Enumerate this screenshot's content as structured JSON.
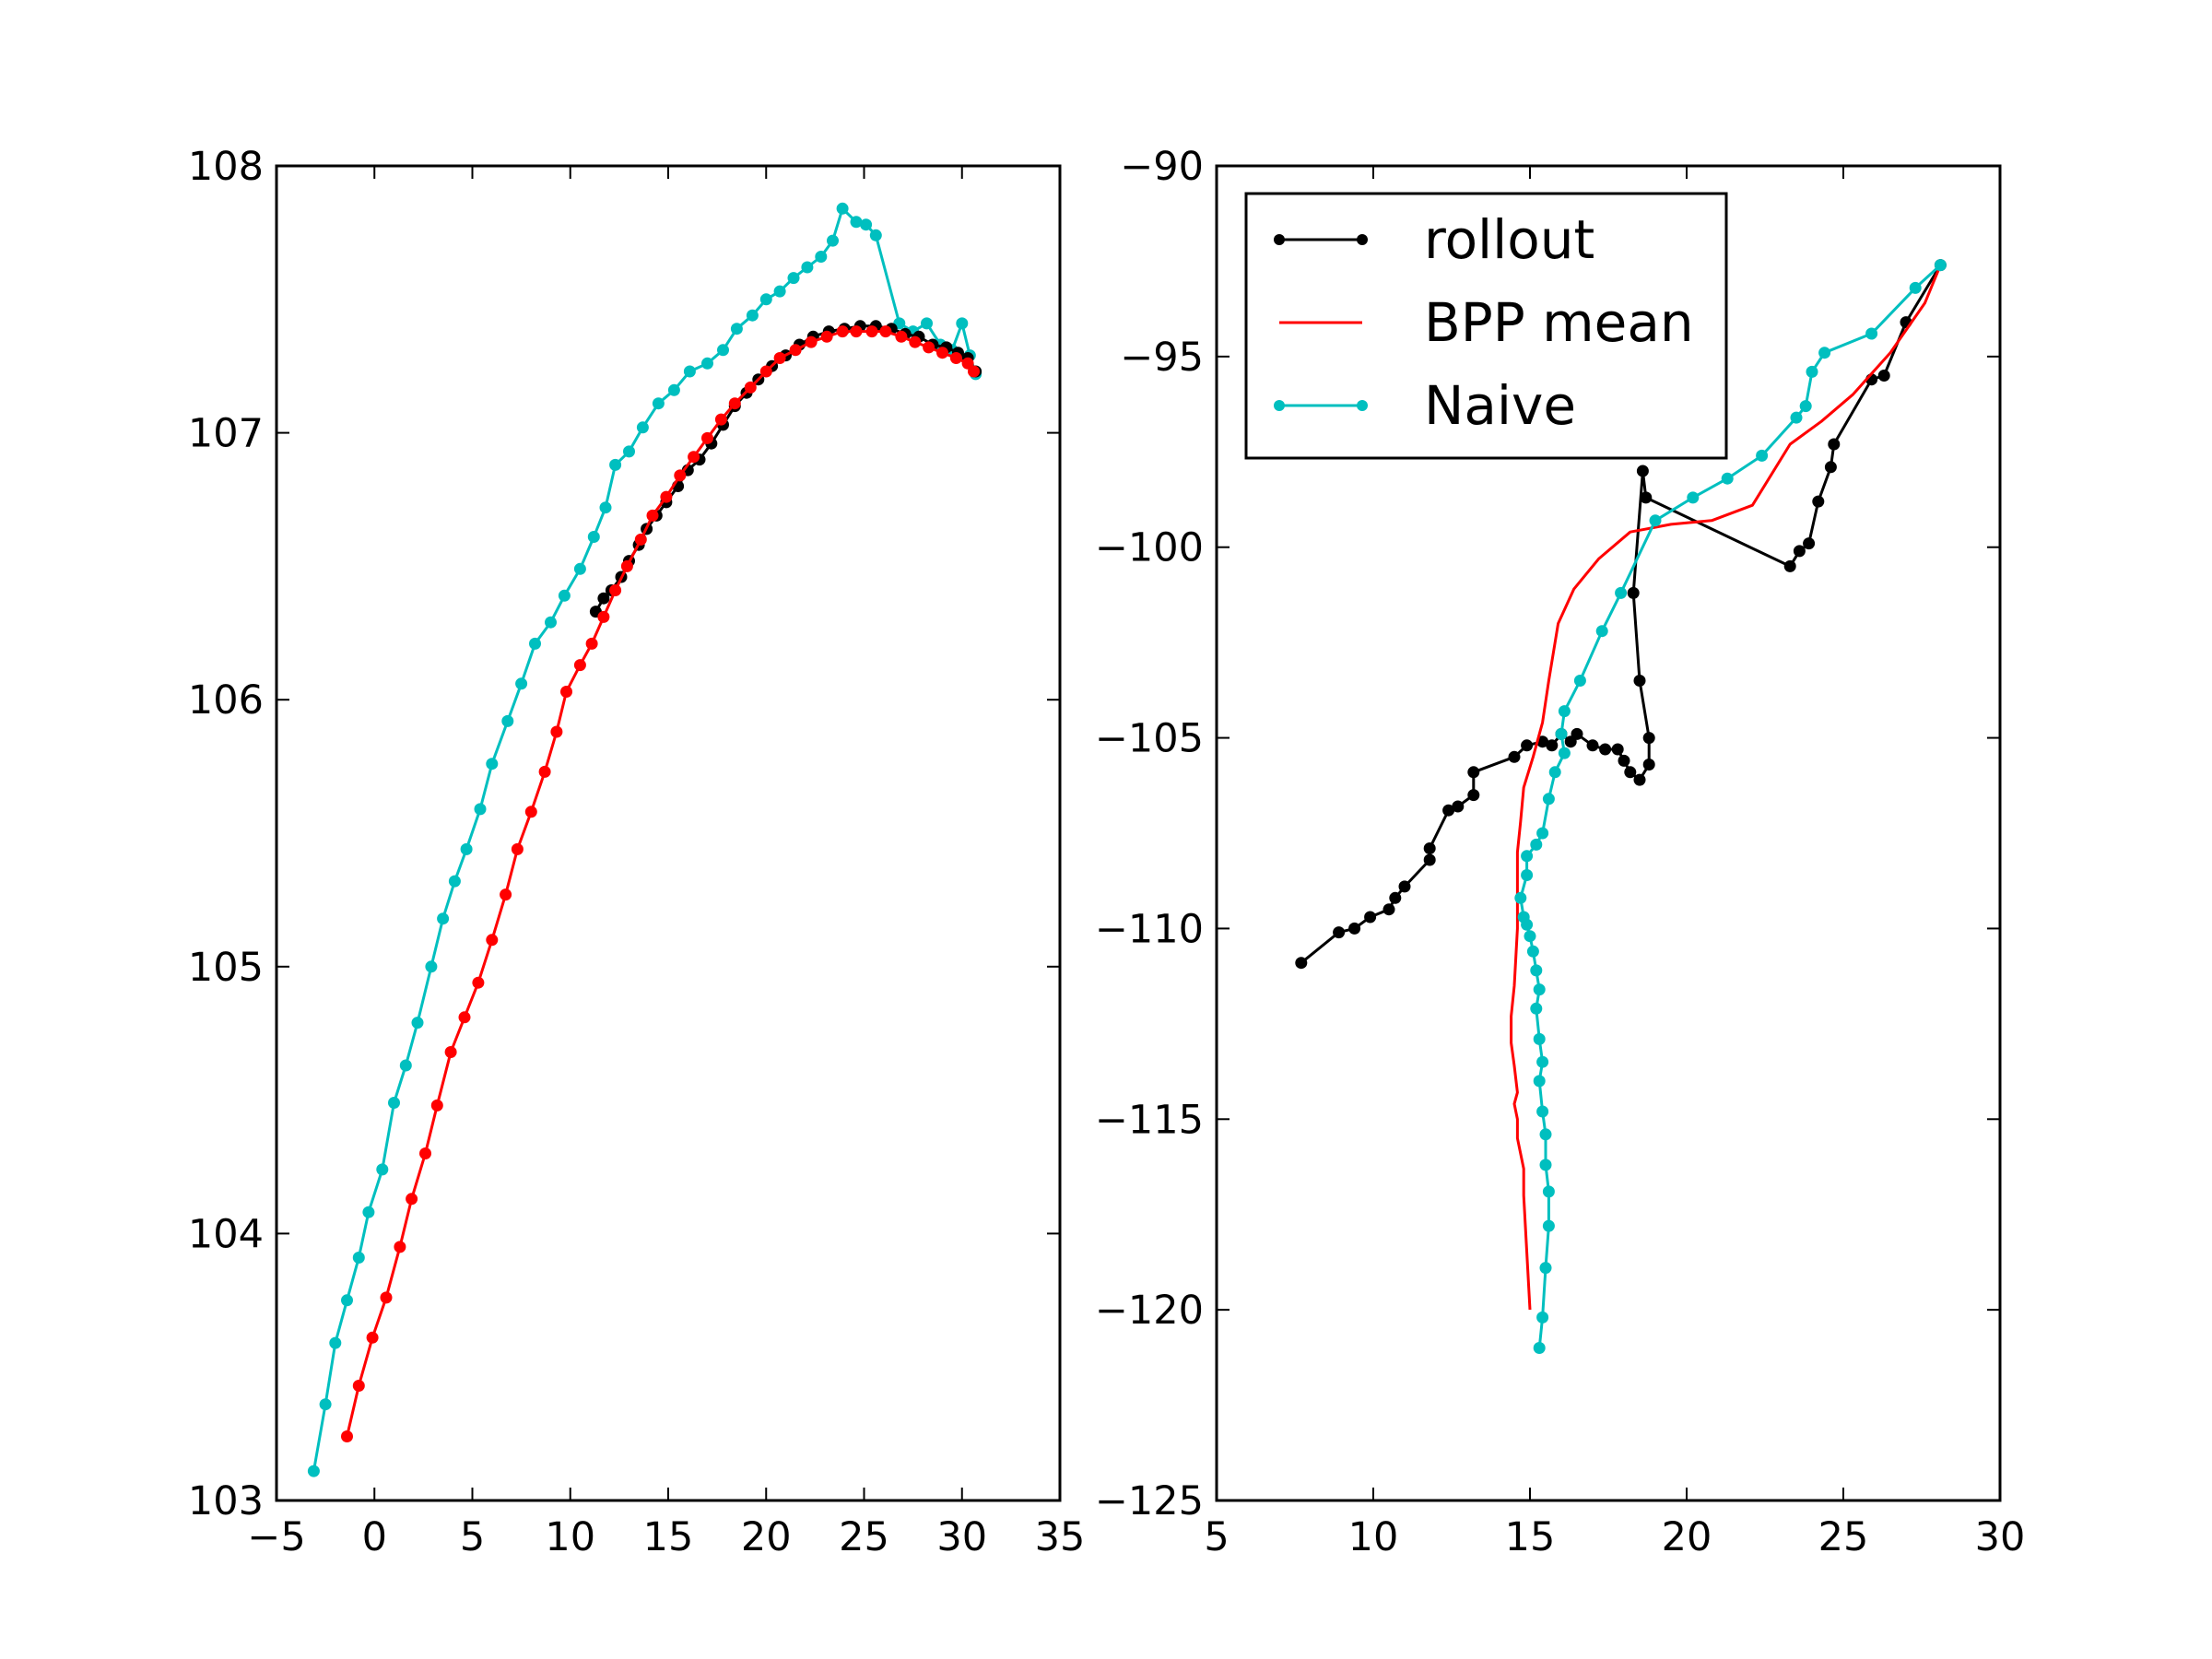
{
  "chart_data": [
    {
      "type": "line",
      "title": "",
      "xlabel": "",
      "ylabel": "",
      "xlim": [
        -5,
        35
      ],
      "ylim": [
        103,
        108
      ],
      "xticks": [
        -5,
        0,
        5,
        10,
        15,
        20,
        25,
        30,
        35
      ],
      "yticks": [
        103,
        104,
        105,
        106,
        107,
        108
      ],
      "grid": false,
      "series": [
        {
          "color": "#00bfbf",
          "marker": "circle",
          "points": [
            [
              -3.1,
              103.11
            ],
            [
              -2.5,
              103.36
            ],
            [
              -2.0,
              103.59
            ],
            [
              -1.4,
              103.75
            ],
            [
              -0.8,
              103.91
            ],
            [
              -0.3,
              104.08
            ],
            [
              0.4,
              104.24
            ],
            [
              1.0,
              104.49
            ],
            [
              1.6,
              104.63
            ],
            [
              2.2,
              104.79
            ],
            [
              2.9,
              105.0
            ],
            [
              3.5,
              105.18
            ],
            [
              4.1,
              105.32
            ],
            [
              4.7,
              105.44
            ],
            [
              5.4,
              105.59
            ],
            [
              6.0,
              105.76
            ],
            [
              6.8,
              105.92
            ],
            [
              7.5,
              106.06
            ],
            [
              8.2,
              106.21
            ],
            [
              9.0,
              106.29
            ],
            [
              9.7,
              106.39
            ],
            [
              10.5,
              106.49
            ],
            [
              11.2,
              106.61
            ],
            [
              11.8,
              106.72
            ],
            [
              12.3,
              106.88
            ],
            [
              13.0,
              106.93
            ],
            [
              13.7,
              107.02
            ],
            [
              14.5,
              107.11
            ],
            [
              15.3,
              107.16
            ],
            [
              16.1,
              107.23
            ],
            [
              17.0,
              107.26
            ],
            [
              17.8,
              107.31
            ],
            [
              18.5,
              107.39
            ],
            [
              19.3,
              107.44
            ],
            [
              20.0,
              107.5
            ],
            [
              20.7,
              107.53
            ],
            [
              21.4,
              107.58
            ],
            [
              22.1,
              107.62
            ],
            [
              22.8,
              107.66
            ],
            [
              23.4,
              107.72
            ],
            [
              23.9,
              107.84
            ],
            [
              24.6,
              107.79
            ],
            [
              25.1,
              107.78
            ],
            [
              25.6,
              107.74
            ],
            [
              26.8,
              107.41
            ],
            [
              27.5,
              107.38
            ],
            [
              28.2,
              107.41
            ],
            [
              28.9,
              107.33
            ],
            [
              29.5,
              107.31
            ],
            [
              30.0,
              107.41
            ],
            [
              30.4,
              107.29
            ],
            [
              30.7,
              107.22
            ]
          ]
        },
        {
          "color": "#000000",
          "marker": "circle",
          "points": [
            [
              11.3,
              106.33
            ],
            [
              11.7,
              106.38
            ],
            [
              12.1,
              106.41
            ],
            [
              12.6,
              106.46
            ],
            [
              13.0,
              106.52
            ],
            [
              13.5,
              106.58
            ],
            [
              13.9,
              106.64
            ],
            [
              14.4,
              106.69
            ],
            [
              14.9,
              106.74
            ],
            [
              15.5,
              106.8
            ],
            [
              16.0,
              106.86
            ],
            [
              16.6,
              106.9
            ],
            [
              17.2,
              106.96
            ],
            [
              17.8,
              107.03
            ],
            [
              18.4,
              107.1
            ],
            [
              19.0,
              107.15
            ],
            [
              19.6,
              107.2
            ],
            [
              20.3,
              107.25
            ],
            [
              21.0,
              107.29
            ],
            [
              21.7,
              107.33
            ],
            [
              22.4,
              107.36
            ],
            [
              23.2,
              107.38
            ],
            [
              24.0,
              107.39
            ],
            [
              24.8,
              107.4
            ],
            [
              25.6,
              107.4
            ],
            [
              26.4,
              107.39
            ],
            [
              27.1,
              107.37
            ],
            [
              27.8,
              107.36
            ],
            [
              28.5,
              107.33
            ],
            [
              29.2,
              107.32
            ],
            [
              29.8,
              107.3
            ],
            [
              30.3,
              107.28
            ],
            [
              30.7,
              107.23
            ]
          ]
        },
        {
          "color": "#ff0000",
          "marker": "circle",
          "points": [
            [
              -1.4,
              103.24
            ],
            [
              -0.8,
              103.43
            ],
            [
              -0.1,
              103.61
            ],
            [
              0.6,
              103.76
            ],
            [
              1.3,
              103.95
            ],
            [
              1.9,
              104.13
            ],
            [
              2.6,
              104.3
            ],
            [
              3.2,
              104.48
            ],
            [
              3.9,
              104.68
            ],
            [
              4.6,
              104.81
            ],
            [
              5.3,
              104.94
            ],
            [
              6.0,
              105.1
            ],
            [
              6.7,
              105.27
            ],
            [
              7.3,
              105.44
            ],
            [
              8.0,
              105.58
            ],
            [
              8.7,
              105.73
            ],
            [
              9.3,
              105.88
            ],
            [
              9.8,
              106.03
            ],
            [
              10.5,
              106.13
            ],
            [
              11.1,
              106.21
            ],
            [
              11.7,
              106.31
            ],
            [
              12.3,
              106.41
            ],
            [
              12.9,
              106.5
            ],
            [
              13.6,
              106.6
            ],
            [
              14.2,
              106.69
            ],
            [
              14.9,
              106.76
            ],
            [
              15.6,
              106.84
            ],
            [
              16.3,
              106.91
            ],
            [
              17.0,
              106.98
            ],
            [
              17.7,
              107.05
            ],
            [
              18.4,
              107.11
            ],
            [
              19.2,
              107.17
            ],
            [
              20.0,
              107.23
            ],
            [
              20.7,
              107.28
            ],
            [
              21.5,
              107.31
            ],
            [
              22.3,
              107.34
            ],
            [
              23.1,
              107.36
            ],
            [
              23.9,
              107.38
            ],
            [
              24.6,
              107.38
            ],
            [
              25.4,
              107.38
            ],
            [
              26.1,
              107.38
            ],
            [
              26.9,
              107.36
            ],
            [
              27.6,
              107.34
            ],
            [
              28.3,
              107.32
            ],
            [
              29.0,
              107.3
            ],
            [
              29.7,
              107.28
            ],
            [
              30.3,
              107.26
            ],
            [
              30.6,
              107.23
            ]
          ]
        }
      ]
    },
    {
      "type": "line",
      "title": "",
      "xlabel": "",
      "ylabel": "",
      "xlim": [
        5,
        30
      ],
      "ylim": [
        -125,
        -90
      ],
      "xticks": [
        5,
        10,
        15,
        20,
        25,
        30
      ],
      "yticks": [
        -125,
        -120,
        -115,
        -110,
        -105,
        -100,
        -95,
        -90
      ],
      "grid": false,
      "legend_position": "top-left",
      "series": [
        {
          "name": "rollout",
          "color": "#000000",
          "marker": "circle",
          "points": [
            [
              7.7,
              -110.9
            ],
            [
              8.9,
              -110.1
            ],
            [
              9.4,
              -110.0
            ],
            [
              9.9,
              -109.7
            ],
            [
              10.5,
              -109.5
            ],
            [
              10.7,
              -109.2
            ],
            [
              11.0,
              -108.9
            ],
            [
              11.8,
              -108.2
            ],
            [
              11.8,
              -107.9
            ],
            [
              12.4,
              -106.9
            ],
            [
              12.7,
              -106.8
            ],
            [
              13.2,
              -106.5
            ],
            [
              13.2,
              -105.9
            ],
            [
              14.5,
              -105.5
            ],
            [
              14.9,
              -105.2
            ],
            [
              15.4,
              -105.1
            ],
            [
              15.7,
              -105.2
            ],
            [
              16.0,
              -104.9
            ],
            [
              16.3,
              -105.1
            ],
            [
              16.5,
              -104.9
            ],
            [
              17.0,
              -105.2
            ],
            [
              17.4,
              -105.3
            ],
            [
              17.8,
              -105.3
            ],
            [
              18.0,
              -105.6
            ],
            [
              18.2,
              -105.9
            ],
            [
              18.5,
              -106.1
            ],
            [
              18.8,
              -105.7
            ],
            [
              18.8,
              -105.0
            ],
            [
              18.5,
              -103.5
            ],
            [
              18.3,
              -101.2
            ],
            [
              18.6,
              -98.0
            ],
            [
              18.7,
              -98.7
            ],
            [
              23.3,
              -100.5
            ],
            [
              23.6,
              -100.1
            ],
            [
              23.9,
              -99.9
            ],
            [
              24.2,
              -98.8
            ],
            [
              24.6,
              -97.9
            ],
            [
              24.7,
              -97.3
            ],
            [
              25.9,
              -95.6
            ],
            [
              26.3,
              -95.5
            ],
            [
              27.0,
              -94.1
            ],
            [
              28.1,
              -92.6
            ]
          ]
        },
        {
          "name": "BPP mean",
          "color": "#ff0000",
          "marker": "none",
          "points": [
            [
              15.0,
              -120.0
            ],
            [
              14.9,
              -118.5
            ],
            [
              14.8,
              -117.0
            ],
            [
              14.8,
              -116.3
            ],
            [
              14.6,
              -115.5
            ],
            [
              14.6,
              -115.0
            ],
            [
              14.5,
              -114.6
            ],
            [
              14.6,
              -114.3
            ],
            [
              14.5,
              -113.6
            ],
            [
              14.4,
              -113.0
            ],
            [
              14.4,
              -112.3
            ],
            [
              14.5,
              -111.5
            ],
            [
              14.6,
              -110.0
            ],
            [
              14.6,
              -109.0
            ],
            [
              14.6,
              -108.0
            ],
            [
              14.7,
              -107.2
            ],
            [
              14.8,
              -106.3
            ],
            [
              15.1,
              -105.5
            ],
            [
              15.4,
              -104.6
            ],
            [
              15.6,
              -103.5
            ],
            [
              15.9,
              -102.0
            ],
            [
              16.4,
              -101.1
            ],
            [
              17.2,
              -100.3
            ],
            [
              18.2,
              -99.6
            ],
            [
              19.5,
              -99.4
            ],
            [
              20.8,
              -99.3
            ],
            [
              22.1,
              -98.9
            ],
            [
              23.3,
              -97.3
            ],
            [
              24.3,
              -96.7
            ],
            [
              25.3,
              -96.0
            ],
            [
              26.5,
              -94.9
            ],
            [
              27.6,
              -93.6
            ],
            [
              28.1,
              -92.6
            ]
          ]
        },
        {
          "name": "Naive",
          "color": "#00bfbf",
          "marker": "circle",
          "points": [
            [
              15.3,
              -121.0
            ],
            [
              15.4,
              -120.2
            ],
            [
              15.5,
              -118.9
            ],
            [
              15.6,
              -117.8
            ],
            [
              15.6,
              -116.9
            ],
            [
              15.5,
              -116.2
            ],
            [
              15.5,
              -115.4
            ],
            [
              15.4,
              -114.8
            ],
            [
              15.3,
              -114.0
            ],
            [
              15.4,
              -113.5
            ],
            [
              15.3,
              -112.9
            ],
            [
              15.2,
              -112.1
            ],
            [
              15.3,
              -111.6
            ],
            [
              15.2,
              -111.1
            ],
            [
              15.1,
              -110.6
            ],
            [
              15.0,
              -110.2
            ],
            [
              14.9,
              -109.9
            ],
            [
              14.8,
              -109.7
            ],
            [
              14.7,
              -109.2
            ],
            [
              14.9,
              -108.6
            ],
            [
              14.9,
              -108.1
            ],
            [
              15.2,
              -107.8
            ],
            [
              15.4,
              -107.5
            ],
            [
              15.6,
              -106.6
            ],
            [
              15.8,
              -105.9
            ],
            [
              16.1,
              -105.4
            ],
            [
              16.0,
              -104.9
            ],
            [
              16.1,
              -104.3
            ],
            [
              16.6,
              -103.5
            ],
            [
              17.3,
              -102.2
            ],
            [
              17.9,
              -101.2
            ],
            [
              19.0,
              -99.3
            ],
            [
              20.2,
              -98.7
            ],
            [
              21.3,
              -98.2
            ],
            [
              22.4,
              -97.6
            ],
            [
              23.5,
              -96.6
            ],
            [
              23.8,
              -96.3
            ],
            [
              24.0,
              -95.4
            ],
            [
              24.4,
              -94.9
            ],
            [
              25.9,
              -94.4
            ],
            [
              27.3,
              -93.2
            ],
            [
              28.1,
              -92.6
            ]
          ]
        }
      ]
    }
  ]
}
